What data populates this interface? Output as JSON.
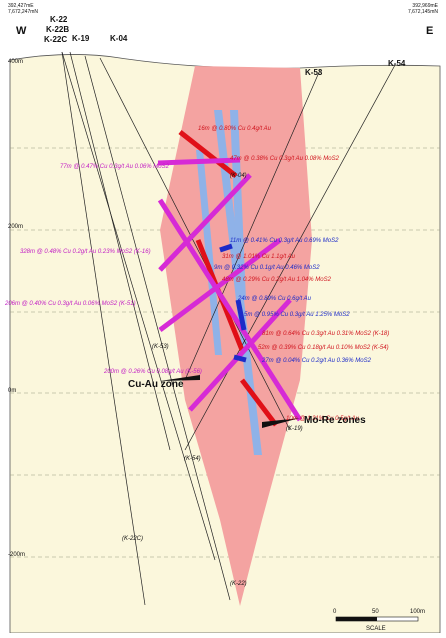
{
  "header": {
    "left_easting": "392,427mE",
    "left_northing": "7,672,247mN",
    "right_easting": "392,969mE",
    "right_northing": "7,672,145mN",
    "west": "W",
    "east": "E"
  },
  "collars": [
    "K-22",
    "K-22B",
    "K-22C",
    "K-19",
    "K-04",
    "K-53",
    "K-54"
  ],
  "elevations": [
    "400m",
    "200m",
    "0m",
    "-200m"
  ],
  "intercepts": [
    "16m @ 0.80% Cu 0.4g/t Au",
    "47m @ 0.38% Cu 0.3g/t Au 0.08% MoS2",
    "77m @ 0.47% Cu 0.3g/t Au 0.06% MoS2",
    "11m @ 0.41% Cu 0.3g/t Au 0.69% MoS2",
    "31m @ 1.01% Cu 1.1g/t Au",
    "328m @ 0.48% Cu 0.2g/t Au 0.23% MoS2 (K-16)",
    "9m @ 0.32% Cu 0.1g/t Au 0.46% MoS2",
    "48m @ 0.29% Cu 0.2g/t Au 1.04% MoS2",
    "206m @ 0.40% Cu 0.3g/t Au 0.06% MoS2 (K-51)",
    "24m @ 0.89% Cu 0.6g/t Au",
    "5m @ 0.95% Cu 0.3g/t Au 1.25% MoS2",
    "81m @ 0.64% Cu 0.3g/t Au 0.31% MoS2 (K-18)",
    "52m @ 0.39% Cu 0.18g/t Au 0.10% MoS2 (K-54)",
    "27m @ 0.04% Cu 0.2g/t Au 0.36% MoS2",
    "200m @ 0.26% Cu 0.08g/t Au (K-56)",
    "10m @ 1.31% Cu 0.5g/t Au"
  ],
  "hole_labels": [
    "(K-04)",
    "(K-53)",
    "(K-19)",
    "(K-54)",
    "(K-22C)",
    "(K-22)"
  ],
  "zones": {
    "cu_au": "Cu-Au zone",
    "mo_re": "Mo-Re zones"
  },
  "scale": {
    "ticks": [
      "0",
      "50",
      "100m"
    ],
    "label": "SCALE"
  }
}
